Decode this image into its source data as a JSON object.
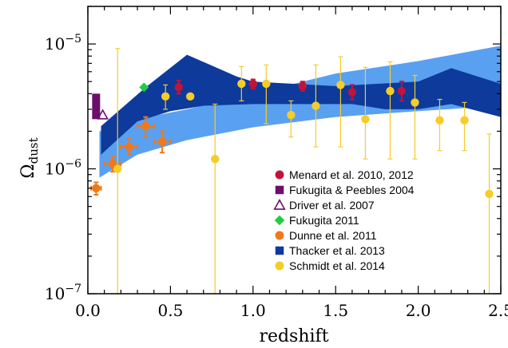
{
  "chart_data": {
    "type": "scatter",
    "xlabel": "redshift",
    "ylabel": "Ω",
    "ylabel_sub": "dust",
    "xlim": [
      0.0,
      2.5
    ],
    "ylim": [
      1e-07,
      2e-05
    ],
    "yscale": "log",
    "grid": false,
    "legend_position": "bottom-right",
    "x_ticks": [
      {
        "value": 0.0,
        "label": "0.0"
      },
      {
        "value": 0.5,
        "label": "0.5"
      },
      {
        "value": 1.0,
        "label": "1.0"
      },
      {
        "value": 1.5,
        "label": "1.5"
      },
      {
        "value": 2.0,
        "label": "2.0"
      },
      {
        "value": 2.5,
        "label": "2.5"
      }
    ],
    "y_ticks": [
      {
        "value": 1e-07,
        "base": "10",
        "exp": "−7"
      },
      {
        "value": 1e-06,
        "base": "10",
        "exp": "−6"
      },
      {
        "value": 1e-05,
        "base": "10",
        "exp": "−5"
      }
    ],
    "bands": [
      {
        "name": "light",
        "color": "#5aa0f0",
        "upper": [
          [
            0.07,
            2e-06
          ],
          [
            0.3,
            2.5e-06
          ],
          [
            0.6,
            3e-06
          ],
          [
            1.0,
            4e-06
          ],
          [
            1.5,
            5.8e-06
          ],
          [
            2.0,
            7.3e-06
          ],
          [
            2.5,
            9.7e-06
          ]
        ],
        "lower": [
          [
            2.5,
            3.2e-06
          ],
          [
            2.0,
            2.9e-06
          ],
          [
            1.5,
            2.6e-06
          ],
          [
            1.0,
            2.15e-06
          ],
          [
            0.6,
            1.7e-06
          ],
          [
            0.3,
            1.3e-06
          ],
          [
            0.1,
            9e-07
          ],
          [
            0.07,
            8.5e-07
          ]
        ]
      },
      {
        "name": "Thacker et al. 2013",
        "color": "#0d3a9b",
        "upper": [
          [
            0.08,
            2.2e-06
          ],
          [
            0.35,
            4.5e-06
          ],
          [
            0.6,
            8.2e-06
          ],
          [
            0.9,
            5.5e-06
          ],
          [
            1.0,
            5e-06
          ],
          [
            1.5,
            4.6e-06
          ],
          [
            2.0,
            5e-06
          ],
          [
            2.2,
            6.4e-06
          ],
          [
            2.5,
            4.8e-06
          ]
        ],
        "lower": [
          [
            2.5,
            2.6e-06
          ],
          [
            2.2,
            3.3e-06
          ],
          [
            2.0,
            3e-06
          ],
          [
            1.8,
            3e-06
          ],
          [
            1.6,
            3.3e-06
          ],
          [
            1.3,
            3.3e-06
          ],
          [
            1.0,
            3.3e-06
          ],
          [
            0.7,
            3.2e-06
          ],
          [
            0.5,
            2.9e-06
          ],
          [
            0.3,
            2.4e-06
          ],
          [
            0.08,
            1.3e-06
          ]
        ]
      }
    ],
    "series": [
      {
        "name": "Menard et al. 2010, 2012",
        "color": "#c0143c",
        "marker": "circle",
        "points": [
          [
            0.55,
            4.5e-06,
            4e-06,
            5.1e-06
          ],
          [
            1.0,
            4.8e-06,
            4.4e-06,
            5.2e-06
          ],
          [
            1.3,
            4.6e-06,
            4.2e-06,
            5e-06
          ],
          [
            1.6,
            4.1e-06,
            3.6e-06,
            4.7e-06
          ],
          [
            1.9,
            4.2e-06,
            3.5e-06,
            5e-06
          ]
        ]
      },
      {
        "name": "Fukugita & Peebles 2004",
        "color": "#6b0f6b",
        "marker": "square",
        "points": [
          [
            0.05,
            3.2e-06,
            2.5e-06,
            4e-06
          ]
        ]
      },
      {
        "name": "Driver et al. 2007",
        "color": "#6b0f6b",
        "marker": "triangle-open",
        "points": [
          [
            0.09,
            2.7e-06,
            2.7e-06,
            2.7e-06
          ]
        ]
      },
      {
        "name": "Fukugita 2011",
        "color": "#22cc44",
        "marker": "diamond",
        "points": [
          [
            0.34,
            4.5e-06,
            4.5e-06,
            4.5e-06
          ]
        ]
      },
      {
        "name": "Dunne et al. 2011",
        "color": "#f07818",
        "marker": "circle",
        "points": [
          [
            0.05,
            7e-07,
            6.2e-07,
            7.8e-07,
            0.03
          ],
          [
            0.15,
            1.1e-06,
            9.5e-07,
            1.25e-06,
            0.05
          ],
          [
            0.25,
            1.5e-06,
            1.3e-06,
            1.75e-06,
            0.05
          ],
          [
            0.35,
            2.2e-06,
            1.8e-06,
            2.6e-06,
            0.05
          ],
          [
            0.45,
            1.65e-06,
            1.35e-06,
            2e-06,
            0.05
          ]
        ]
      },
      {
        "name": "Thacker et al. 2013",
        "color": "#0d3a9b",
        "marker": "square",
        "points": []
      },
      {
        "name": "Schmidt et al. 2014",
        "color": "#f5cc28",
        "marker": "circle",
        "points": [
          [
            0.18,
            1e-06,
            1e-07,
            9.2e-06
          ],
          [
            0.47,
            3.8e-06,
            3e-06,
            4.7e-06
          ],
          [
            0.62,
            3.8e-06,
            3.8e-06,
            3.8e-06
          ],
          [
            0.77,
            1.2e-06,
            1e-07,
            3.3e-06
          ],
          [
            0.93,
            4.8e-06,
            3.5e-06,
            6.6e-06
          ],
          [
            1.08,
            4.8e-06,
            2.3e-06,
            6.8e-06
          ],
          [
            1.23,
            2.7e-06,
            1.8e-06,
            3.5e-06
          ],
          [
            1.38,
            3.2e-06,
            1.5e-06,
            6.8e-06
          ],
          [
            1.53,
            4.7e-06,
            1.5e-06,
            7.9e-06
          ],
          [
            1.68,
            2.5e-06,
            1.2e-06,
            6.5e-06
          ],
          [
            1.83,
            4.2e-06,
            1.2e-06,
            7.2e-06
          ],
          [
            1.98,
            3.4e-06,
            1.2e-06,
            5.6e-06
          ],
          [
            2.13,
            2.45e-06,
            1.4e-06,
            3.6e-06
          ],
          [
            2.28,
            2.45e-06,
            1.4e-06,
            3.4e-06
          ],
          [
            2.43,
            6.3e-07,
            1e-07,
            1.9e-06
          ]
        ]
      }
    ]
  }
}
